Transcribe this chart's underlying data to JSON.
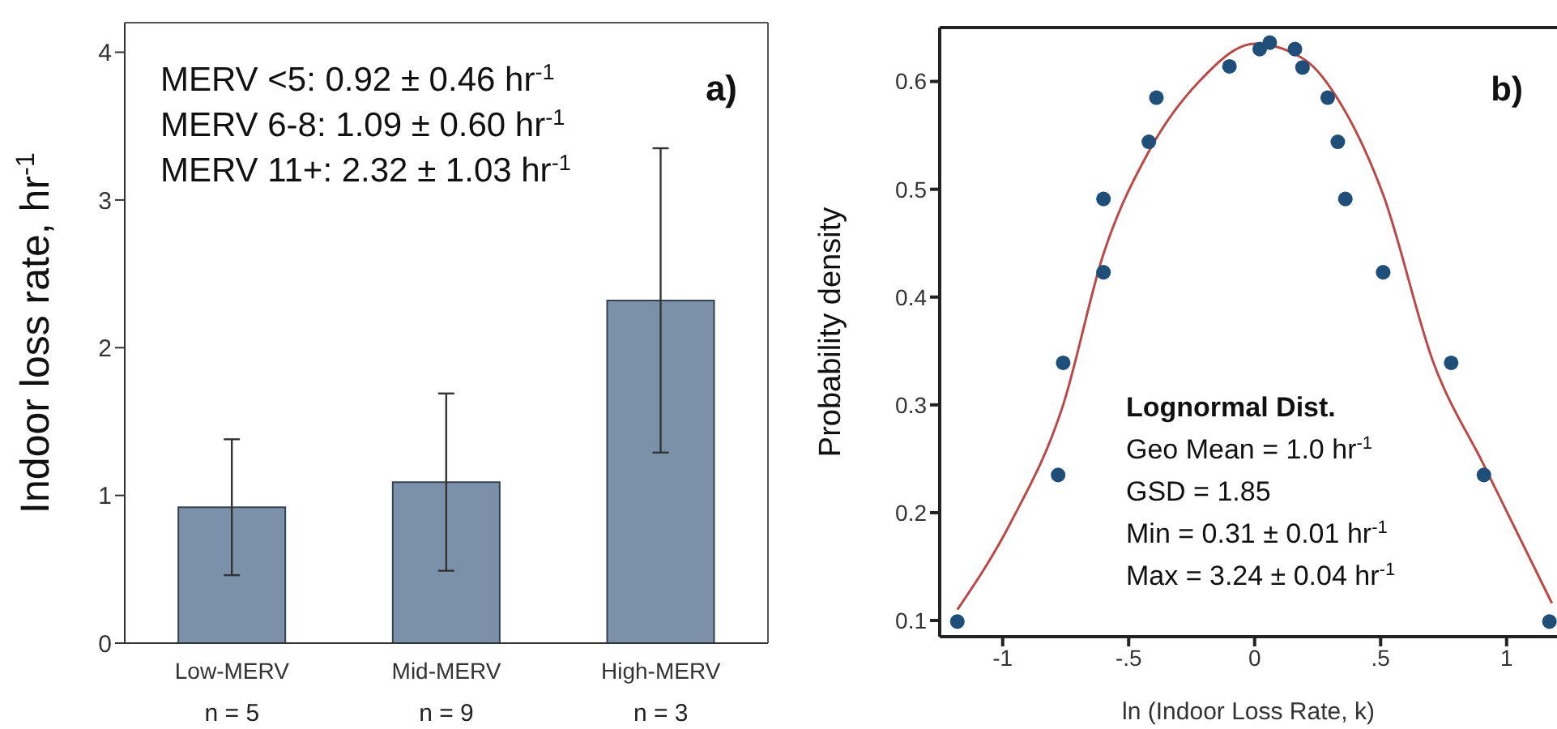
{
  "chart_data": [
    {
      "type": "bar",
      "categories": [
        "Low-MERV",
        "Mid-MERV",
        "High-MERV"
      ],
      "values": [
        0.92,
        1.09,
        2.32
      ],
      "errors": [
        0.46,
        0.6,
        1.03
      ],
      "color": "#7b91aa",
      "ylim": [
        0,
        4.2
      ],
      "yticks": [
        0,
        1,
        2,
        3,
        4
      ],
      "ylabel": "Indoor loss rate, hr$^{-1}$",
      "annotations": [
        "a)",
        "MERV <5: 0.92 ± 0.46 hr$^{-1}$",
        "MERV 6-8: 1.09 ± 0.60 hr$^{-1}$",
        "MERV 11+: 2.32 ± 1.03 hr$^{-1}$",
        "n = 5",
        "n = 9",
        "n = 3"
      ]
    },
    {
      "type": "scatter",
      "xlabel": "ln (Indoor Loss Rate, k)",
      "ylabel": "Probability density",
      "xlim": [
        -1.25,
        1.2
      ],
      "xticks": [
        {
          "value": -1,
          "label": "-1"
        },
        {
          "value": -0.5,
          "label": "-.5"
        },
        0,
        {
          "value": 0.5,
          "label": ".5"
        },
        1
      ],
      "ylim": [
        0.085,
        0.65
      ],
      "yticks": [
        0.1,
        0.2,
        0.3,
        0.4,
        0.5,
        0.6
      ],
      "series": [
        {
          "type": "scatter",
          "color": "#1f4e79",
          "marker": "circle",
          "x": [
            -1.18,
            -0.78,
            -0.76,
            -0.6,
            -0.6,
            -0.42,
            -0.39,
            -0.1,
            0.02,
            0.06,
            0.16,
            0.19,
            0.29,
            0.33,
            0.36,
            0.51,
            0.78,
            0.91,
            1.17
          ],
          "values": [
            0.099,
            0.235,
            0.339,
            0.491,
            0.423,
            0.544,
            0.585,
            0.614,
            0.63,
            0.636,
            0.63,
            0.613,
            0.585,
            0.544,
            0.491,
            0.423,
            0.339,
            0.235,
            0.099
          ]
        },
        {
          "type": "line",
          "color": "#b94a48",
          "marker": "none",
          "line_style": "solid",
          "x": [
            -1.18,
            -0.97,
            -0.76,
            -0.6,
            -0.42,
            -0.22,
            0,
            0.2,
            0.35,
            0.51,
            0.71,
            0.91,
            1.18
          ],
          "values": [
            0.11,
            0.19,
            0.3,
            0.44,
            0.535,
            0.6,
            0.635,
            0.62,
            0.576,
            0.495,
            0.339,
            0.244,
            0.116
          ]
        }
      ],
      "annotations": [
        "b)",
        "Lognormal Dist.",
        "Geo Mean = 1.0 hr$^{-1}$",
        "GSD = 1.85",
        "Min = 0.31 ± 0.01 hr$^{-1}$",
        "Max = 3.24 ± 0.04 hr$^{-1}$"
      ]
    }
  ]
}
